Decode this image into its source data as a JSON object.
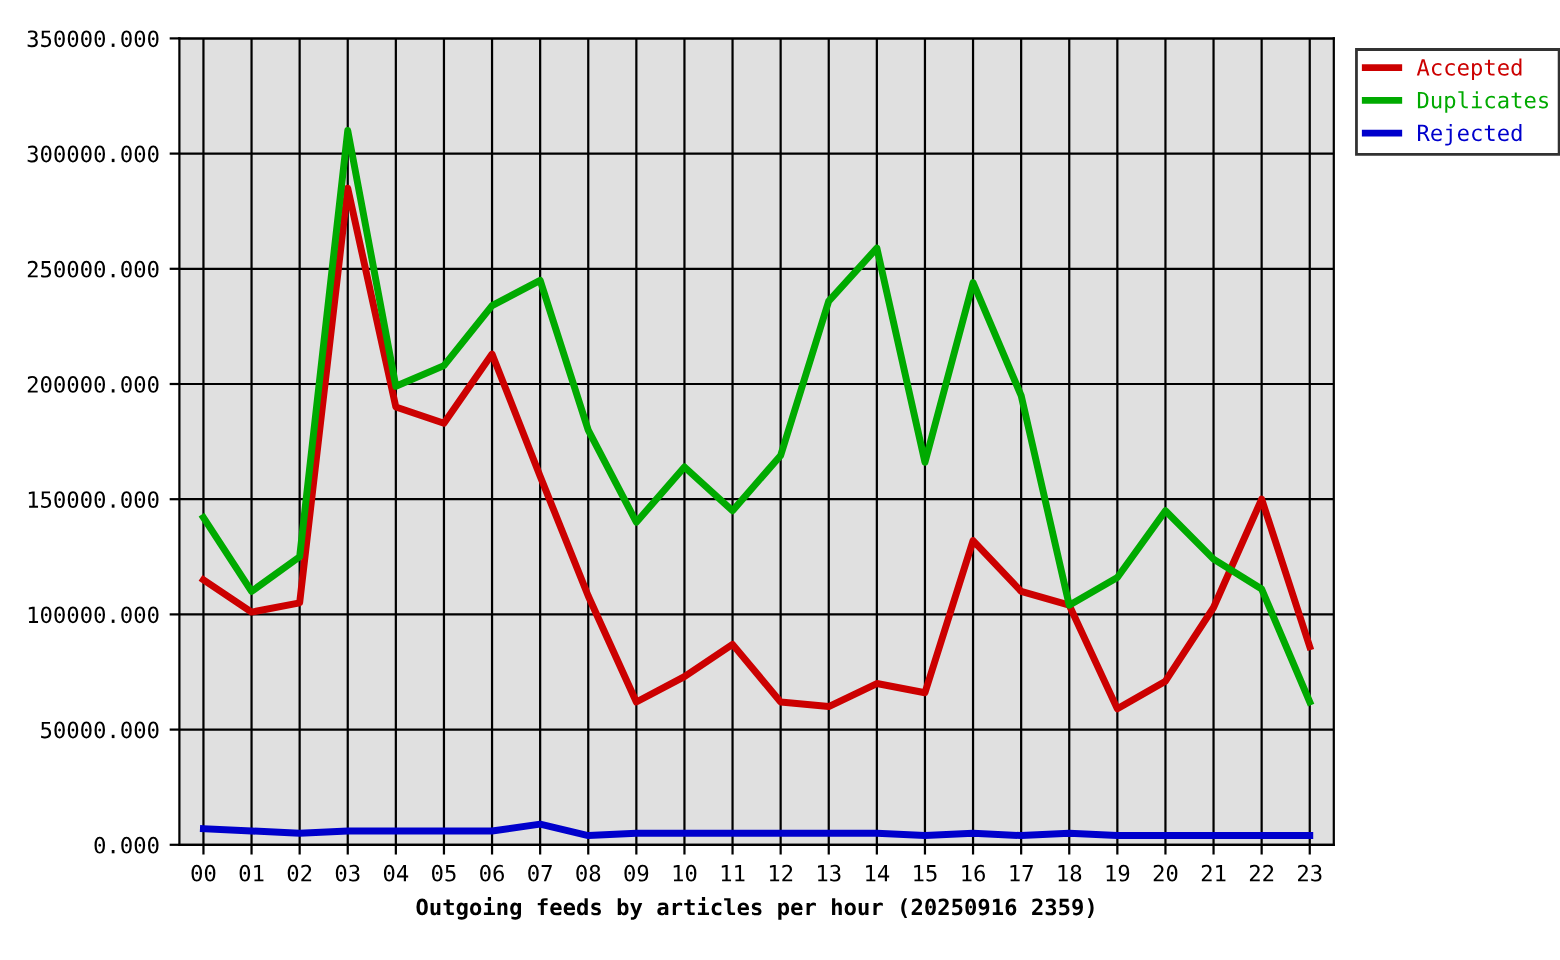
{
  "chart_data": {
    "type": "line",
    "xlabel": "Outgoing feeds by articles per hour (20250916 2359)",
    "categories": [
      "00",
      "01",
      "02",
      "03",
      "04",
      "05",
      "06",
      "07",
      "08",
      "09",
      "10",
      "11",
      "12",
      "13",
      "14",
      "15",
      "16",
      "17",
      "18",
      "19",
      "20",
      "21",
      "22",
      "23"
    ],
    "series": [
      {
        "name": "Accepted",
        "color": "#cc0000",
        "values": [
          115000,
          101000,
          105000,
          285000,
          190000,
          183000,
          213000,
          160000,
          108000,
          62000,
          73000,
          87000,
          62000,
          60000,
          70000,
          66000,
          132000,
          110000,
          104000,
          59000,
          71000,
          103000,
          150000,
          86000
        ]
      },
      {
        "name": "Duplicates",
        "color": "#00aa00",
        "values": [
          142000,
          110000,
          125000,
          310000,
          199000,
          208000,
          234000,
          245000,
          180000,
          140000,
          164000,
          145000,
          169000,
          236000,
          259000,
          166000,
          244000,
          195000,
          104000,
          116000,
          145000,
          124000,
          111000,
          62000
        ]
      },
      {
        "name": "Rejected",
        "color": "#0000cc",
        "values": [
          7000,
          6000,
          5000,
          6000,
          6000,
          6000,
          6000,
          9000,
          4000,
          5000,
          5000,
          5000,
          5000,
          5000,
          5000,
          4000,
          5000,
          4000,
          5000,
          4000,
          4000,
          4000,
          4000,
          4000
        ]
      }
    ],
    "ylim": [
      0,
      350000
    ],
    "yticks": [
      {
        "value": 0,
        "label": "0.000"
      },
      {
        "value": 50000,
        "label": "50000.000"
      },
      {
        "value": 100000,
        "label": "100000.000"
      },
      {
        "value": 150000,
        "label": "150000.000"
      },
      {
        "value": 200000,
        "label": "200000.000"
      },
      {
        "value": 250000,
        "label": "250000.000"
      },
      {
        "value": 300000,
        "label": "300000.000"
      },
      {
        "value": 350000,
        "label": "350000.000"
      }
    ],
    "grid": true,
    "legend": "top right"
  }
}
